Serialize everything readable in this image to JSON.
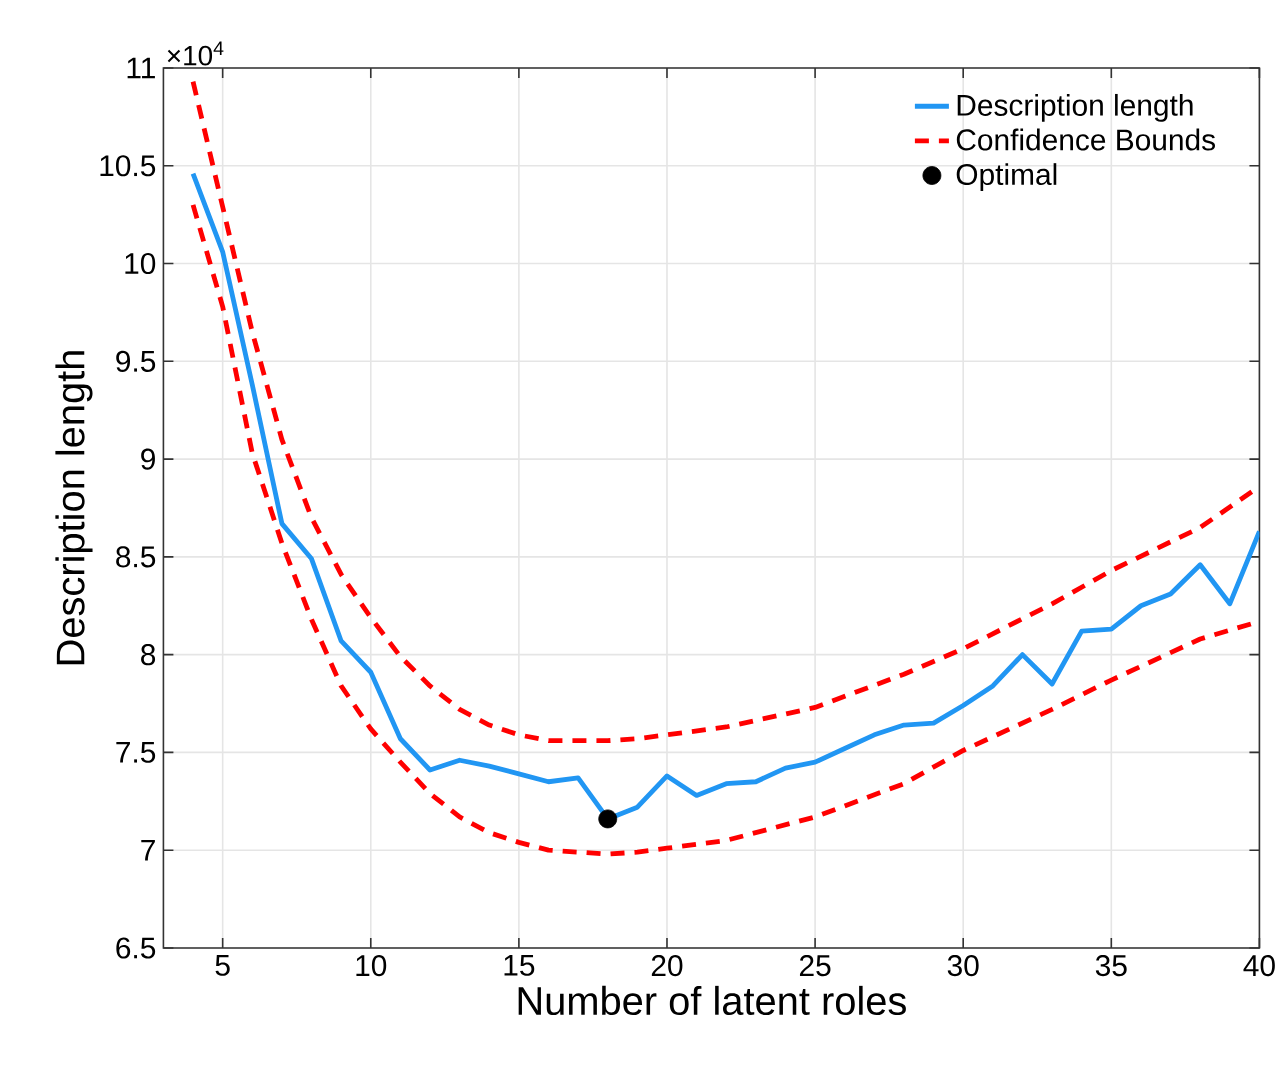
{
  "chart_data": {
    "type": "line",
    "xlabel": "Number of latent roles",
    "ylabel": "Description length",
    "xlim": [
      3,
      40
    ],
    "ylim": [
      6.5,
      11
    ],
    "xticks": [
      5,
      10,
      15,
      20,
      25,
      30,
      35,
      40
    ],
    "yticks": [
      6.5,
      7,
      7.5,
      8,
      8.5,
      9,
      9.5,
      10,
      10.5,
      11
    ],
    "grid": true,
    "legend": "top right",
    "annotations": [
      "×10$^{4}$"
    ],
    "series": [
      {
        "name": "Description length",
        "color": "#2196f3",
        "line_style": "solid",
        "marker": "none",
        "x": [
          4,
          5,
          6,
          7,
          8,
          9,
          10,
          11,
          12,
          13,
          14,
          15,
          16,
          17,
          18,
          19,
          20,
          21,
          22,
          23,
          24,
          25,
          26,
          27,
          28,
          29,
          30,
          31,
          32,
          33,
          34,
          35,
          36,
          37,
          38,
          39,
          40
        ],
        "values": [
          10.46,
          10.06,
          9.38,
          8.67,
          8.49,
          8.07,
          7.91,
          7.57,
          7.41,
          7.46,
          7.43,
          7.39,
          7.35,
          7.37,
          7.16,
          7.22,
          7.38,
          7.28,
          7.34,
          7.35,
          7.42,
          7.45,
          7.52,
          7.59,
          7.64,
          7.65,
          7.74,
          7.84,
          8.0,
          7.85,
          8.12,
          8.13,
          8.25,
          8.31,
          8.46,
          8.26,
          8.63
        ]
      },
      {
        "name": "Confidence Bounds",
        "color": "#ff0000",
        "line_style": "dashed",
        "marker": "none",
        "x": [
          4,
          5,
          6,
          7,
          8,
          9,
          10,
          11,
          12,
          13,
          14,
          15,
          16,
          17,
          18,
          19,
          20,
          22,
          25,
          28,
          30,
          33,
          35,
          38,
          40
        ],
        "values": [
          10.93,
          10.29,
          9.65,
          9.1,
          8.7,
          8.41,
          8.19,
          7.99,
          7.84,
          7.72,
          7.64,
          7.59,
          7.56,
          7.56,
          7.56,
          7.57,
          7.59,
          7.63,
          7.73,
          7.9,
          8.03,
          8.26,
          8.43,
          8.65,
          8.86
        ]
      },
      {
        "color": "#ff0000",
        "line_style": "dashed",
        "marker": "none",
        "x": [
          4,
          5,
          6,
          7,
          8,
          9,
          10,
          11,
          12,
          13,
          14,
          15,
          16,
          17,
          18,
          19,
          20,
          22,
          25,
          28,
          30,
          33,
          35,
          38,
          40
        ],
        "values": [
          10.3,
          9.78,
          9.03,
          8.57,
          8.18,
          7.84,
          7.62,
          7.45,
          7.29,
          7.17,
          7.09,
          7.04,
          7.0,
          6.99,
          6.98,
          6.99,
          7.01,
          7.05,
          7.17,
          7.34,
          7.51,
          7.72,
          7.87,
          8.08,
          8.17
        ]
      },
      {
        "name": "Optimal",
        "type": "scatter",
        "color": "#000000",
        "marker": "circle",
        "x": [
          18
        ],
        "values": [
          7.16
        ]
      }
    ]
  }
}
